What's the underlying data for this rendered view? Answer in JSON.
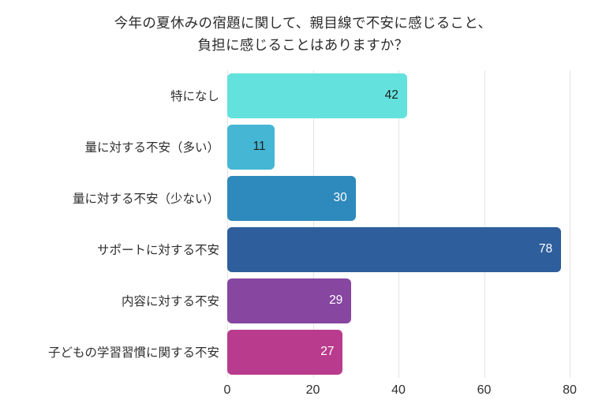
{
  "chart_data": {
    "type": "bar",
    "orientation": "horizontal",
    "title": "今年の夏休みの宿題に関して、親目線で不安に感じること、負担に感じることはありますか？",
    "title_lines": {
      "line1": "今年の夏休みの宿題に関して、親目線で不安に感じること、",
      "line2": "負担に感じることはありますか？"
    },
    "categories": [
      "特になし",
      "量に対する不安（多い）",
      "量に対する不安（少ない）",
      "サポートに対する不安",
      "内容に対する不安",
      "子どもの学習習慣に関する不安"
    ],
    "values": [
      42,
      11,
      30,
      78,
      29,
      27
    ],
    "bar_colors": [
      "#63e2dd",
      "#45b6d3",
      "#2e89bc",
      "#2e5f9c",
      "#8746a0",
      "#b93b8d"
    ],
    "value_label_colors": [
      "#1e1e1e",
      "#1e1e1e",
      "#ffffff",
      "#ffffff",
      "#ffffff",
      "#ffffff"
    ],
    "xlabel": "",
    "ylabel": "",
    "xlim": [
      0,
      80
    ],
    "x_ticks": [
      "0",
      "20",
      "40",
      "60",
      "80"
    ],
    "x_tick_positions_pct": [
      0,
      25,
      50,
      75,
      100
    ],
    "grid": "vertical",
    "gridline_color": "#e4e4e4",
    "background_color": "#ffffff",
    "legend": "none"
  }
}
